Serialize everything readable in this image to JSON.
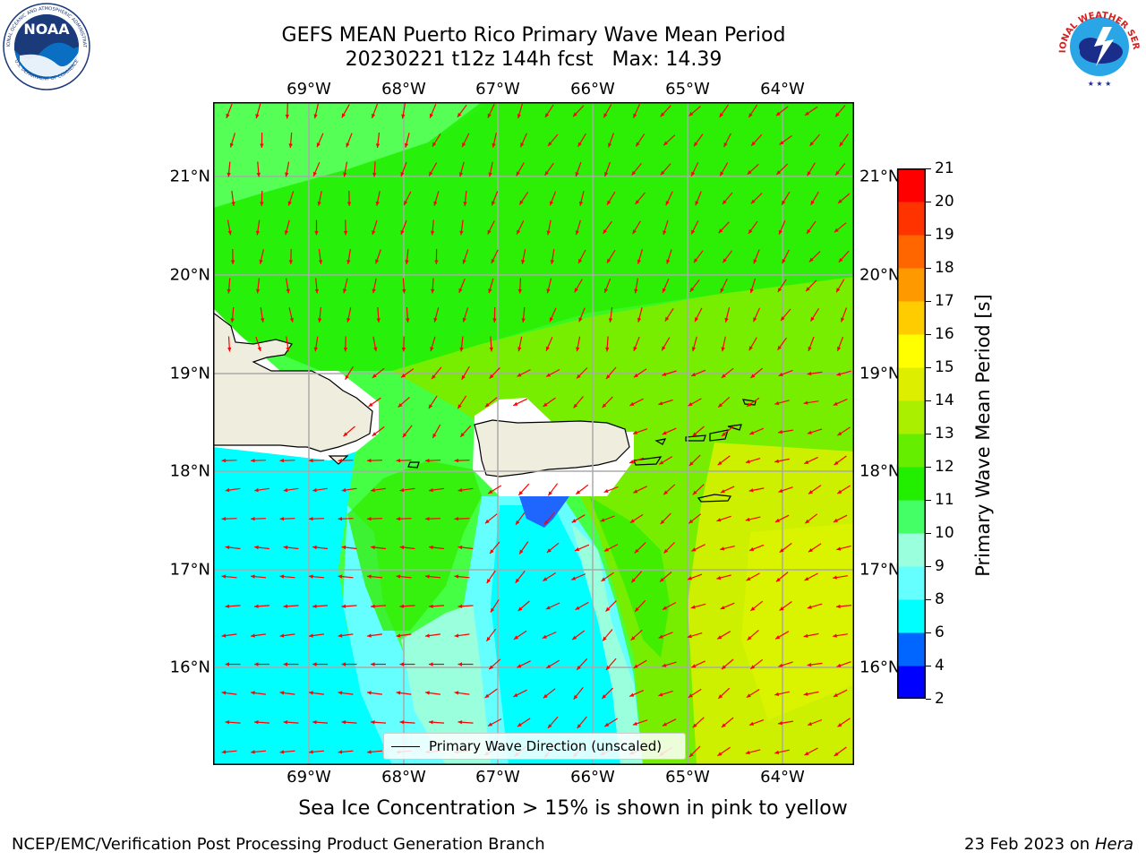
{
  "header": {
    "title_line1": "GEFS MEAN Puerto Rico Primary Wave Mean Period",
    "title_line2": "20230221 t12z 144h fcst   Max: 14.39"
  },
  "map": {
    "lon_labels": [
      "69°W",
      "68°W",
      "67°W",
      "66°W",
      "65°W",
      "64°W"
    ],
    "lat_labels": [
      "21°N",
      "20°N",
      "19°N",
      "18°N",
      "17°N",
      "16°N"
    ],
    "legend_label": "Primary Wave Direction (unscaled)",
    "arrow_color": "#ff0000",
    "land_color": "#efedde"
  },
  "colorbar": {
    "label": "Primary Wave Mean Period [s]",
    "ticks": [
      "2",
      "4",
      "6",
      "8",
      "9",
      "10",
      "11",
      "12",
      "13",
      "14",
      "15",
      "16",
      "17",
      "18",
      "19",
      "20",
      "21"
    ],
    "colors": [
      "#0000ff",
      "#0066ff",
      "#00ffff",
      "#66ffff",
      "#99ffdd",
      "#44ff66",
      "#22ee00",
      "#66ee00",
      "#aaee00",
      "#ddee00",
      "#ffff00",
      "#ffcc00",
      "#ff9900",
      "#ff6600",
      "#ff3300",
      "#ff0000"
    ]
  },
  "notes": {
    "sea_ice": "Sea Ice Concentration > 15% is shown in pink to yellow"
  },
  "footer": {
    "left": "NCEP/EMC/Verification Post Processing Product Generation Branch",
    "date": "23 Feb 2023 on",
    "machine": "Hera"
  },
  "logos": {
    "noaa_text": "NOAA",
    "noaa_ring_text": "NATIONAL OCEANIC AND ATMOSPHERIC ADMINISTRATION",
    "noaa_bottom_text": "U.S. DEPARTMENT OF COMMERCE",
    "nws_ring_text": "NATIONAL WEATHER SERVICE"
  }
}
